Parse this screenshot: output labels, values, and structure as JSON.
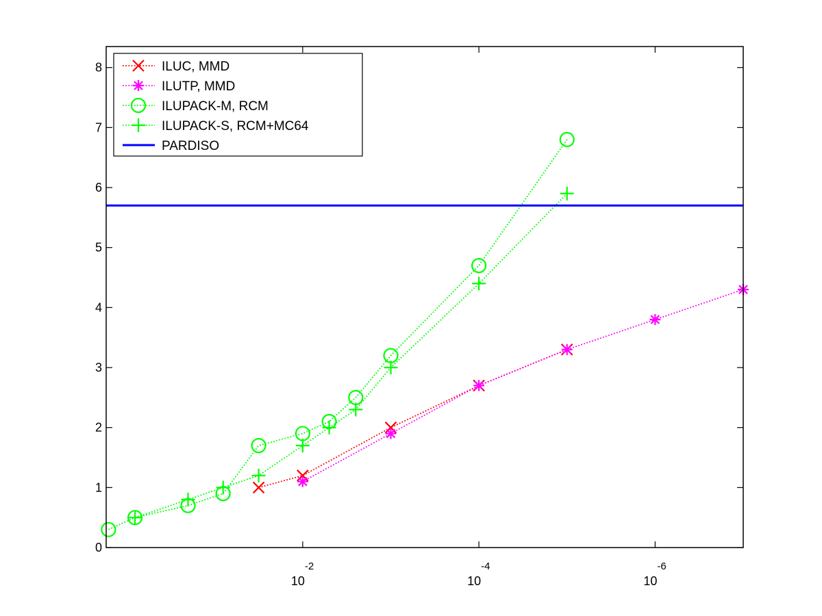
{
  "chart_data": {
    "type": "line",
    "title": "",
    "xlabel": "",
    "ylabel": "",
    "x_scale": "log-reversed",
    "xlim": [
      1.7,
      1e-07
    ],
    "ylim": [
      0,
      8.35
    ],
    "y_ticks": [
      0,
      1,
      2,
      3,
      4,
      5,
      6,
      7,
      8
    ],
    "x_ticks": [
      {
        "value": 0.01,
        "base": "10",
        "exp": "-2"
      },
      {
        "value": 0.0001,
        "base": "10",
        "exp": "-4"
      },
      {
        "value": 1e-06,
        "base": "10",
        "exp": "-6"
      }
    ],
    "legend_position": "top-left",
    "series": [
      {
        "name": "ILUC, MMD",
        "color": "#ff0000",
        "marker": "x",
        "line_style": "dotted",
        "x": [
          0.0316,
          0.01,
          0.001,
          0.0001,
          1e-05
        ],
        "y": [
          1.0,
          1.2,
          2.0,
          2.7,
          3.3
        ]
      },
      {
        "name": "ILUTP, MMD",
        "color": "#ff00ff",
        "marker": "asterisk",
        "line_style": "dotted",
        "x": [
          0.01,
          0.001,
          0.0001,
          1e-05,
          1e-06,
          1e-07
        ],
        "y": [
          1.1,
          1.9,
          2.7,
          3.3,
          3.8,
          4.3
        ]
      },
      {
        "name": "ILUPACK-M, RCM",
        "color": "#00ff00",
        "marker": "circle",
        "line_style": "dotted",
        "x": [
          1.6,
          0.8,
          0.2,
          0.08,
          0.0316,
          0.01,
          0.005,
          0.0025,
          0.001,
          0.0001,
          1e-05
        ],
        "y": [
          0.3,
          0.5,
          0.7,
          0.9,
          1.7,
          1.9,
          2.1,
          2.5,
          3.2,
          4.7,
          6.8
        ]
      },
      {
        "name": "ILUPACK-S, RCM+MC64",
        "color": "#00ff00",
        "marker": "plus",
        "line_style": "dotted",
        "x": [
          0.8,
          0.2,
          0.08,
          0.0316,
          0.01,
          0.005,
          0.0025,
          0.001,
          0.0001,
          1e-05
        ],
        "y": [
          0.5,
          0.8,
          1.0,
          1.2,
          1.7,
          2.0,
          2.3,
          3.0,
          4.4,
          5.9
        ]
      },
      {
        "name": "PARDISO",
        "color": "#0000ff",
        "marker": "none",
        "line_style": "solid",
        "x": [
          1.7,
          1e-07
        ],
        "y": [
          5.7,
          5.7
        ]
      }
    ]
  }
}
